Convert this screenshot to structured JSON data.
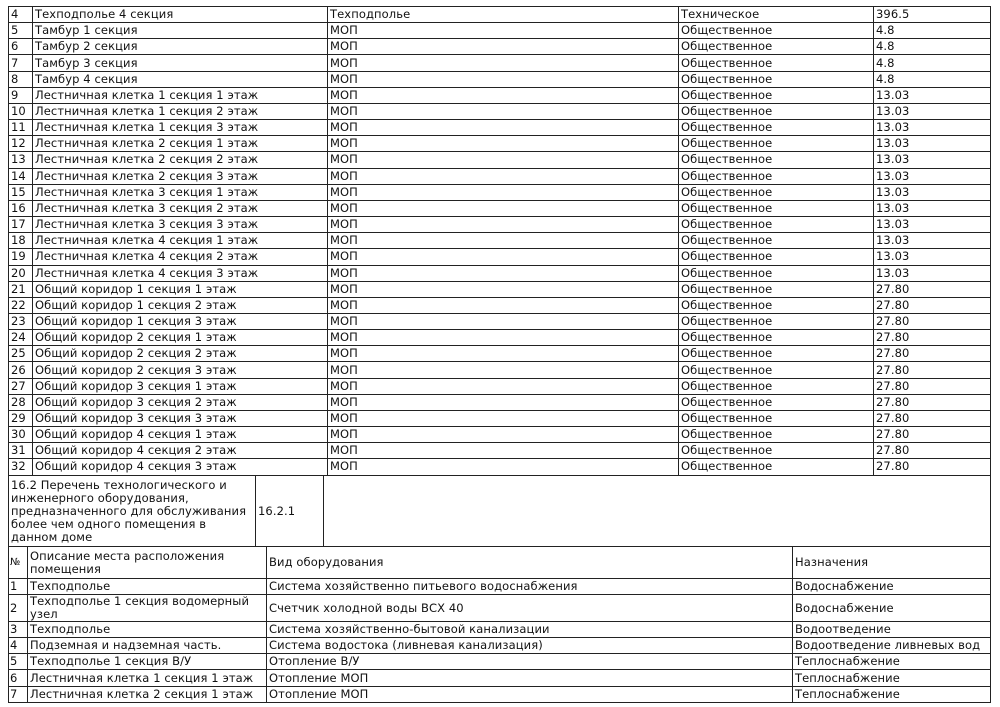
{
  "rooms_table": {
    "rows": [
      [
        "4",
        "Техподполье 4 секция",
        "Техподполье",
        "Техническое",
        "396.5"
      ],
      [
        "5",
        "Тамбур 1 секция",
        "МОП",
        "Общественное",
        "4.8"
      ],
      [
        "6",
        "Тамбур 2 секция",
        "МОП",
        "Общественное",
        "4.8"
      ],
      [
        "7",
        "Тамбур 3 секция",
        "МОП",
        "Общественное",
        "4.8"
      ],
      [
        "8",
        "Тамбур 4 секция",
        "МОП",
        "Общественное",
        "4.8"
      ],
      [
        "9",
        "Лестничная клетка 1 секция 1 этаж",
        "МОП",
        "Общественное",
        "13.03"
      ],
      [
        "10",
        "Лестничная клетка 1 секция 2 этаж",
        "МОП",
        "Общественное",
        "13.03"
      ],
      [
        "11",
        "Лестничная клетка 1 секция 3 этаж",
        "МОП",
        "Общественное",
        "13.03"
      ],
      [
        "12",
        "Лестничная клетка 2 секция 1 этаж",
        "МОП",
        "Общественное",
        "13.03"
      ],
      [
        "13",
        "Лестничная клетка 2 секция 2 этаж",
        "МОП",
        "Общественное",
        "13.03"
      ],
      [
        "14",
        "Лестничная клетка 2 секция 3 этаж",
        "МОП",
        "Общественное",
        "13.03"
      ],
      [
        "15",
        "Лестничная клетка 3 секция 1 этаж",
        "МОП",
        "Общественное",
        "13.03"
      ],
      [
        "16",
        "Лестничная клетка 3 секция 2 этаж",
        "МОП",
        "Общественное",
        "13.03"
      ],
      [
        "17",
        "Лестничная клетка 3 секция 3 этаж",
        "МОП",
        "Общественное",
        "13.03"
      ],
      [
        "18",
        "Лестничная клетка 4 секция 1 этаж",
        "МОП",
        "Общественное",
        "13.03"
      ],
      [
        "19",
        "Лестничная клетка 4 секция 2 этаж",
        "МОП",
        "Общественное",
        "13.03"
      ],
      [
        "20",
        "Лестничная клетка 4 секция 3 этаж",
        "МОП",
        "Общественное",
        "13.03"
      ],
      [
        "21",
        "Общий коридор 1 секция 1 этаж",
        "МОП",
        "Общественное",
        "27.80"
      ],
      [
        "22",
        "Общий коридор 1 секция 2 этаж",
        "МОП",
        "Общественное",
        "27.80"
      ],
      [
        "23",
        "Общий коридор 1 секция 3 этаж",
        "МОП",
        "Общественное",
        "27.80"
      ],
      [
        "24",
        "Общий коридор 2 секция 1 этаж",
        "МОП",
        "Общественное",
        "27.80"
      ],
      [
        "25",
        "Общий коридор 2 секция 2 этаж",
        "МОП",
        "Общественное",
        "27.80"
      ],
      [
        "26",
        "Общий коридор 2 секция 3 этаж",
        "МОП",
        "Общественное",
        "27.80"
      ],
      [
        "27",
        "Общий коридор 3 секция 1 этаж",
        "МОП",
        "Общественное",
        "27.80"
      ],
      [
        "28",
        "Общий коридор 3 секция 2 этаж",
        "МОП",
        "Общественное",
        "27.80"
      ],
      [
        "29",
        "Общий коридор 3 секция 3 этаж",
        "МОП",
        "Общественное",
        "27.80"
      ],
      [
        "30",
        "Общий коридор 4 секция 1 этаж",
        "МОП",
        "Общественное",
        "27.80"
      ],
      [
        "31",
        "Общий коридор 4 секция 2 этаж",
        "МОП",
        "Общественное",
        "27.80"
      ],
      [
        "32",
        "Общий коридор 4 секция 3 этаж",
        "МОП",
        "Общественное",
        "27.80"
      ]
    ]
  },
  "section": {
    "title": "16.2 Перечень технологического и инженерного оборудования, предназначенного для обслуживания более чем одного помещения в данном доме",
    "code": "16.2.1",
    "value": ""
  },
  "equipment_table": {
    "headers": [
      "№",
      "Описание места расположения помещения",
      "Вид оборудования",
      "Назначения"
    ],
    "rows": [
      [
        "1",
        "Техподполье",
        "Система хозяйственно питьевого водоснабжения",
        "Водоснабжение"
      ],
      [
        "2",
        "Техподполье 1 секция водомерный узел",
        "Счетчик холодной воды ВСХ 40",
        "Водоснабжение"
      ],
      [
        "3",
        "Техподполье",
        "Система хозяйственно-бытовой канализации",
        "Водоотведение"
      ],
      [
        "4",
        "Подземная и надземная часть.",
        "Система водостока (ливневая канализация)",
        "Водоотведение ливневых вод"
      ],
      [
        "5",
        "Техподполье 1 секция В/У",
        "Отопление В/У",
        "Теплоснабжение"
      ],
      [
        "6",
        "Лестничная клетка 1 секция 1 этаж",
        "Отопление МОП",
        "Теплоснабжение"
      ],
      [
        "7",
        "Лестничная клетка 2 секция 1 этаж",
        "Отопление МОП",
        "Теплоснабжение"
      ]
    ]
  }
}
